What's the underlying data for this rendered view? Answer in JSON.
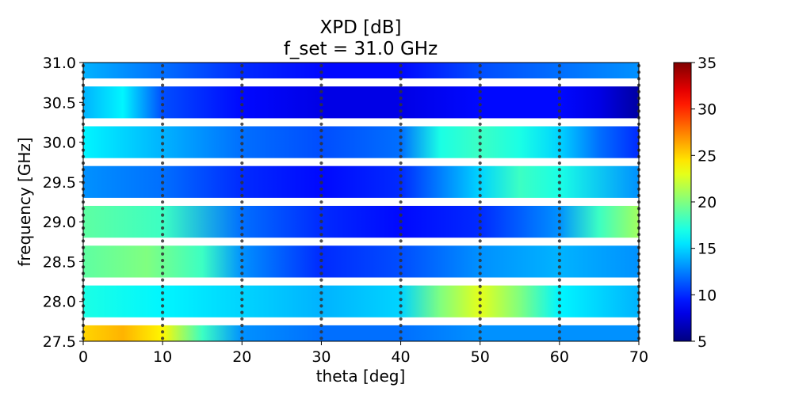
{
  "chart_data": {
    "type": "heatmap",
    "title_line1": "XPD [dB]",
    "title_line2": "f_set = 31.0 GHz",
    "xlabel": "theta [deg]",
    "ylabel": "frequency [GHz]",
    "xlim": [
      0,
      70
    ],
    "ylim": [
      27.5,
      31.0
    ],
    "x_ticks": [
      0,
      10,
      20,
      30,
      40,
      50,
      60,
      70
    ],
    "y_ticks": [
      "27.5",
      "28.0",
      "28.5",
      "29.0",
      "29.5",
      "30.0",
      "30.5",
      "31.0"
    ],
    "colorbar": {
      "colormap": "jet",
      "min": 5,
      "max": 35,
      "ticks": [
        5,
        10,
        15,
        20,
        25,
        30,
        35
      ]
    },
    "gridlines": false,
    "measurement_theta": [
      0,
      10,
      20,
      30,
      40,
      50,
      60,
      70
    ],
    "bands": [
      {
        "f_range": [
          31.0,
          30.8
        ],
        "theta": [
          0,
          10,
          20,
          30,
          40,
          50,
          60,
          70
        ],
        "xpd": [
          14,
          12,
          10,
          9,
          9,
          11,
          12,
          13
        ]
      },
      {
        "f_range": [
          30.7,
          30.3
        ],
        "theta": [
          0,
          5,
          10,
          20,
          30,
          40,
          50,
          60,
          65,
          70
        ],
        "xpd": [
          14,
          16,
          11,
          9,
          8,
          8,
          9,
          9,
          8,
          6
        ]
      },
      {
        "f_range": [
          30.2,
          29.8
        ],
        "theta": [
          0,
          10,
          20,
          30,
          40,
          45,
          50,
          55,
          60,
          65,
          70
        ],
        "xpd": [
          16,
          14,
          12,
          11,
          12,
          17,
          18,
          17,
          15,
          12,
          10
        ]
      },
      {
        "f_range": [
          29.7,
          29.3
        ],
        "theta": [
          0,
          10,
          20,
          30,
          40,
          50,
          55,
          60,
          70
        ],
        "xpd": [
          13,
          12,
          10,
          9,
          10,
          15,
          18,
          17,
          13
        ]
      },
      {
        "f_range": [
          29.2,
          28.8
        ],
        "theta": [
          0,
          10,
          20,
          30,
          40,
          50,
          60,
          65,
          70
        ],
        "xpd": [
          19,
          18,
          12,
          10,
          9,
          10,
          13,
          18,
          21
        ]
      },
      {
        "f_range": [
          28.7,
          28.3
        ],
        "theta": [
          0,
          8,
          15,
          20,
          30,
          40,
          50,
          60,
          70
        ],
        "xpd": [
          19,
          20,
          18,
          13,
          10,
          11,
          13,
          14,
          13
        ]
      },
      {
        "f_range": [
          28.2,
          27.8
        ],
        "theta": [
          0,
          10,
          20,
          30,
          40,
          45,
          50,
          55,
          60,
          70
        ],
        "xpd": [
          17,
          16,
          15,
          14,
          15,
          20,
          23,
          20,
          16,
          14
        ]
      },
      {
        "f_range": [
          27.7,
          27.5
        ],
        "theta": [
          0,
          5,
          10,
          15,
          20,
          30,
          40,
          50,
          60,
          70
        ],
        "xpd": [
          25,
          26,
          24,
          18,
          13,
          12,
          12,
          13,
          13,
          13
        ]
      }
    ]
  }
}
